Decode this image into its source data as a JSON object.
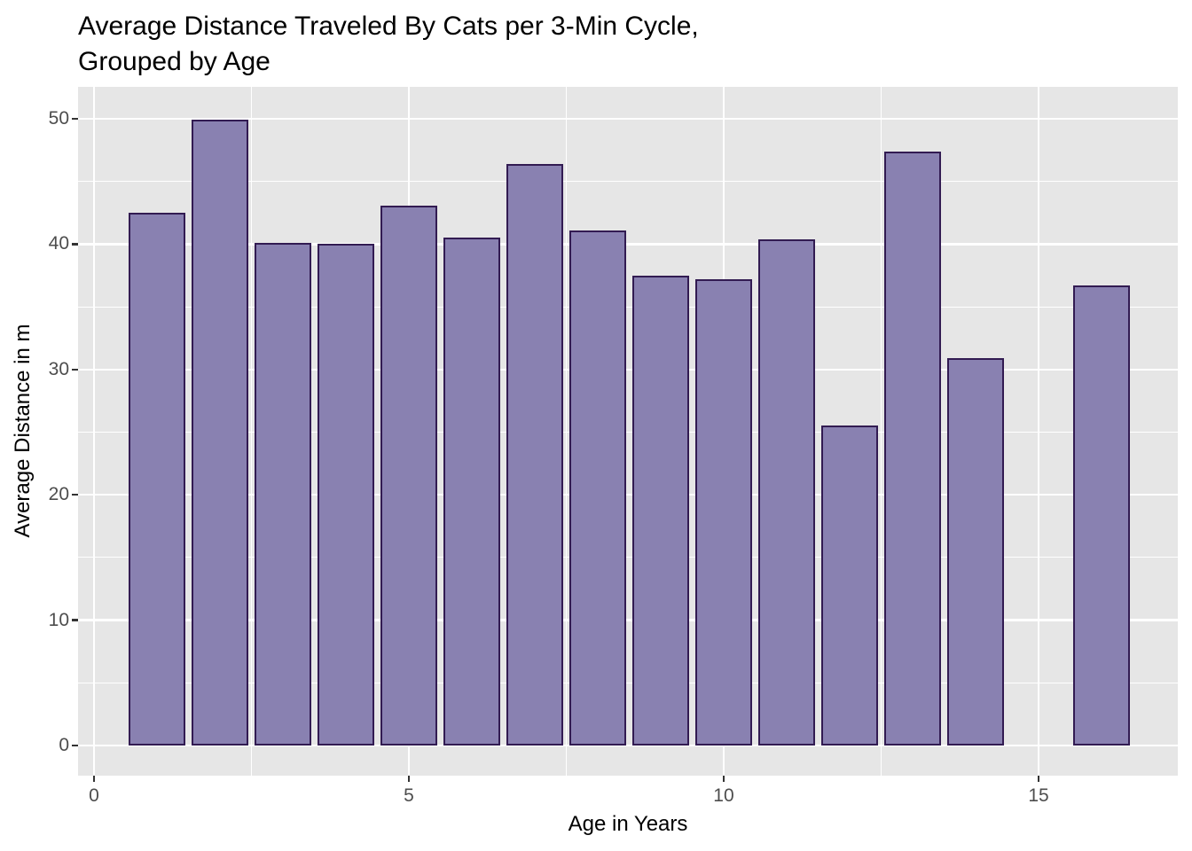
{
  "chart_data": {
    "type": "bar",
    "title": "Average Distance Traveled By Cats per 3-Min Cycle, Grouped by Age",
    "title_lines": [
      "Average Distance Traveled By Cats per 3-Min Cycle,",
      "Grouped by Age"
    ],
    "xlabel": "Age in Years",
    "ylabel": "Average Distance in m",
    "x": [
      1,
      2,
      3,
      4,
      5,
      6,
      7,
      8,
      9,
      10,
      11,
      12,
      13,
      14,
      16
    ],
    "values": [
      42.5,
      49.9,
      40.1,
      40.0,
      43.1,
      40.5,
      46.4,
      41.1,
      37.5,
      37.2,
      40.4,
      25.5,
      47.4,
      30.9,
      36.7
    ],
    "bar_width": 0.9,
    "x_domain": [
      -0.253,
      17.211
    ],
    "y_domain": [
      -2.404,
      52.546
    ],
    "x_ticks_major": [
      0,
      5,
      10,
      15
    ],
    "x_ticks_minor": [
      2.5,
      7.5,
      12.5
    ],
    "y_ticks_major": [
      0,
      10,
      20,
      30,
      40,
      50
    ],
    "y_ticks_minor": [
      5,
      15,
      25,
      35,
      45
    ],
    "x_tick_labels": [
      "0",
      "5",
      "10",
      "15"
    ],
    "y_tick_labels": [
      "0",
      "10",
      "20",
      "30",
      "40",
      "50"
    ],
    "grid": "on",
    "legend": "none",
    "colors": {
      "bar_fill": "#8981B1",
      "bar_stroke": "#321B52",
      "panel_bg": "#E6E6E6",
      "grid": "#FFFFFF",
      "tick_label": "#4D4D4D",
      "tick_mark": "#333333",
      "text": "#000000"
    }
  }
}
